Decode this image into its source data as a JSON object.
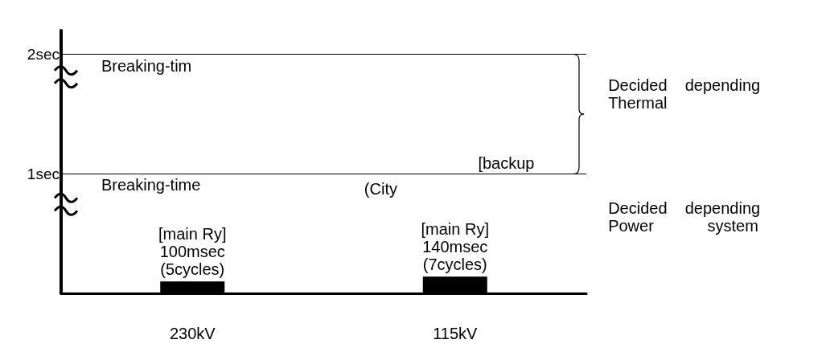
{
  "chart_data": {
    "type": "bar",
    "categories": [
      "230kV",
      "115kV"
    ],
    "values": [
      0.1,
      0.14
    ],
    "color": "#000000",
    "value_labels": [
      "[main Ry]\n100msec\n(5cycles)",
      "[main Ry]\n140msec\n(7cycles)"
    ],
    "ylim": [
      0,
      2.2
    ],
    "yticks": [
      {
        "value": 1,
        "label": "1sec"
      },
      {
        "value": 2,
        "label": "2sec"
      }
    ],
    "ref_lines": [
      {
        "axis": "y",
        "value": 2,
        "label": "Breaking-tim",
        "color": "#000000"
      },
      {
        "axis": "y",
        "value": 1,
        "label": "Breaking-time",
        "color": "#000000"
      }
    ],
    "annotations": [
      "(City",
      "[backup",
      "Decided    depending\nThermal",
      "Decided    depending\nPower            system"
    ]
  }
}
